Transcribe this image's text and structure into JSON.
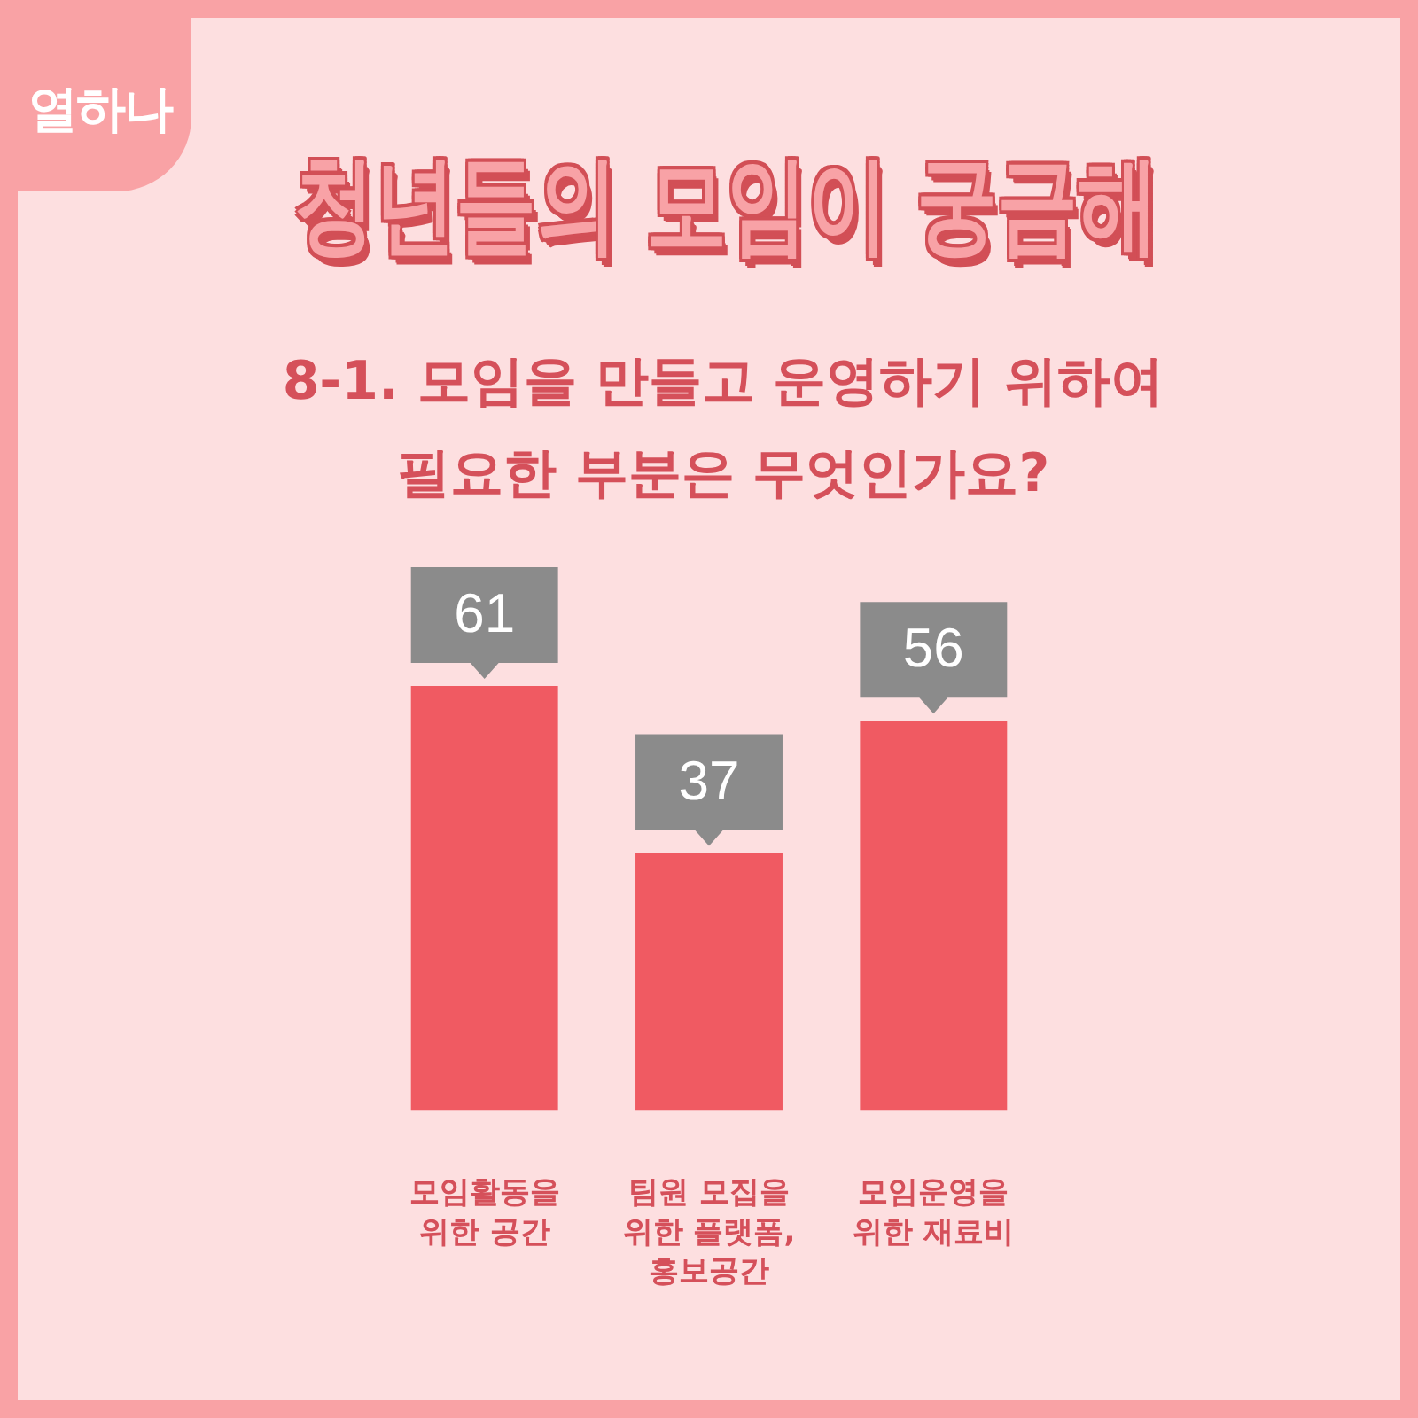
{
  "chart_data": {
    "type": "bar",
    "title": "청년들의 모임이 궁금해",
    "subtitle": "8-1. 모임을 만들고 운영하기 위하여\n필요한 부분은 무엇인가요?",
    "categories": [
      "모임활동을\n위한 공간",
      "팀원 모집을\n위한 플랫폼,\n홍보공간",
      "모임운영을\n위한 재료비"
    ],
    "values": [
      61,
      37,
      56
    ],
    "color": "#f05a62",
    "data_labels": true,
    "tick_labels": "x",
    "annotations": [
      "열하나"
    ]
  }
}
